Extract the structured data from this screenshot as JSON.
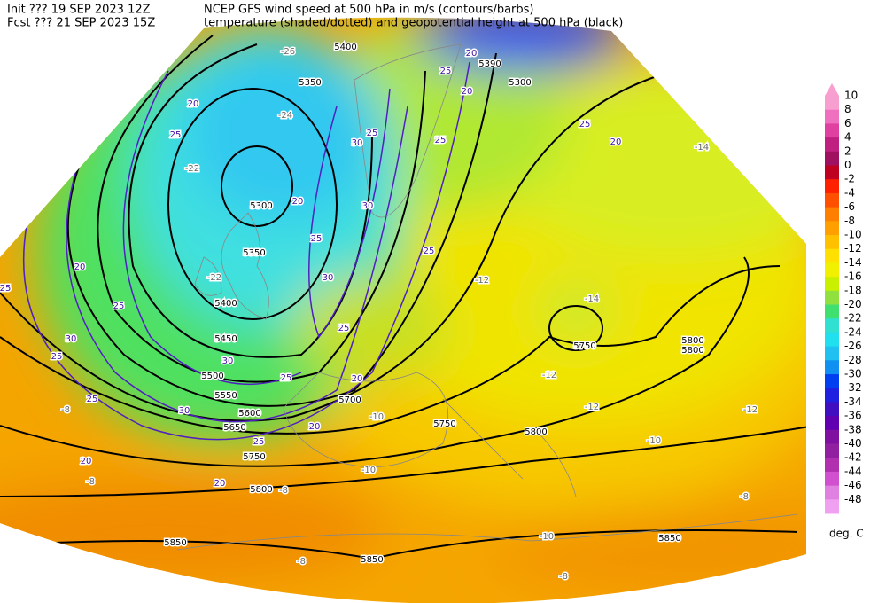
{
  "header": {
    "line1_left": "Init  ??? 19 SEP 2023 12Z",
    "line1_right": "NCEP GFS wind speed at 500 hPa in m/s (contours/barbs)",
    "line2_left": "Fcst ??? 21 SEP 2023 15Z",
    "line2_right": "temperature (shaded/dotted) and geopotential height at 500 hPa (black)"
  },
  "colorbar": {
    "labels": [
      10,
      8,
      6,
      4,
      2,
      0,
      -2,
      -4,
      -6,
      -8,
      -10,
      -12,
      -14,
      -16,
      -18,
      -20,
      -22,
      -24,
      -26,
      -28,
      -30,
      -32,
      -34,
      -36,
      -38,
      -40,
      -42,
      -44,
      -46,
      -48
    ],
    "colors": [
      "#f7a0d0",
      "#f070c0",
      "#e040a0",
      "#c02080",
      "#a01060",
      "#c00020",
      "#ff2000",
      "#ff5000",
      "#ff8000",
      "#ffa000",
      "#ffc000",
      "#ffe000",
      "#f0f000",
      "#c8f000",
      "#90e040",
      "#40e070",
      "#30e0d0",
      "#20e0f0",
      "#20c0f0",
      "#1090f0",
      "#0040f0",
      "#2020e0",
      "#4010c0",
      "#6000b0",
      "#8010a0",
      "#9020a0",
      "#b030b0",
      "#d050d0",
      "#e080e0",
      "#f0a0f0"
    ],
    "unit": "deg. C"
  },
  "map": {
    "height_labels": [
      "5400",
      "5350",
      "5300",
      "5350",
      "5400",
      "5450",
      "5500",
      "5550",
      "5600",
      "5650",
      "5700",
      "5750",
      "5750",
      "5750",
      "5800",
      "5800",
      "5800",
      "5800",
      "5850",
      "5850",
      "5850",
      "5390",
      "5300"
    ],
    "wind_labels": [
      "20",
      "25",
      "20",
      "25",
      "30",
      "30",
      "25",
      "25",
      "20",
      "25",
      "20",
      "20",
      "25",
      "30",
      "25",
      "20",
      "25",
      "30",
      "30",
      "20",
      "25",
      "20",
      "20",
      "25",
      "25",
      "30",
      "25",
      "20",
      "25",
      "25"
    ],
    "temp_labels": [
      "-26",
      "-24",
      "-22",
      "-22",
      "-14",
      "-12",
      "-12",
      "-12",
      "-12",
      "-10",
      "-10",
      "-10",
      "-10",
      "-8",
      "-8",
      "-8",
      "-8",
      "-8",
      "-8",
      "-14"
    ]
  }
}
